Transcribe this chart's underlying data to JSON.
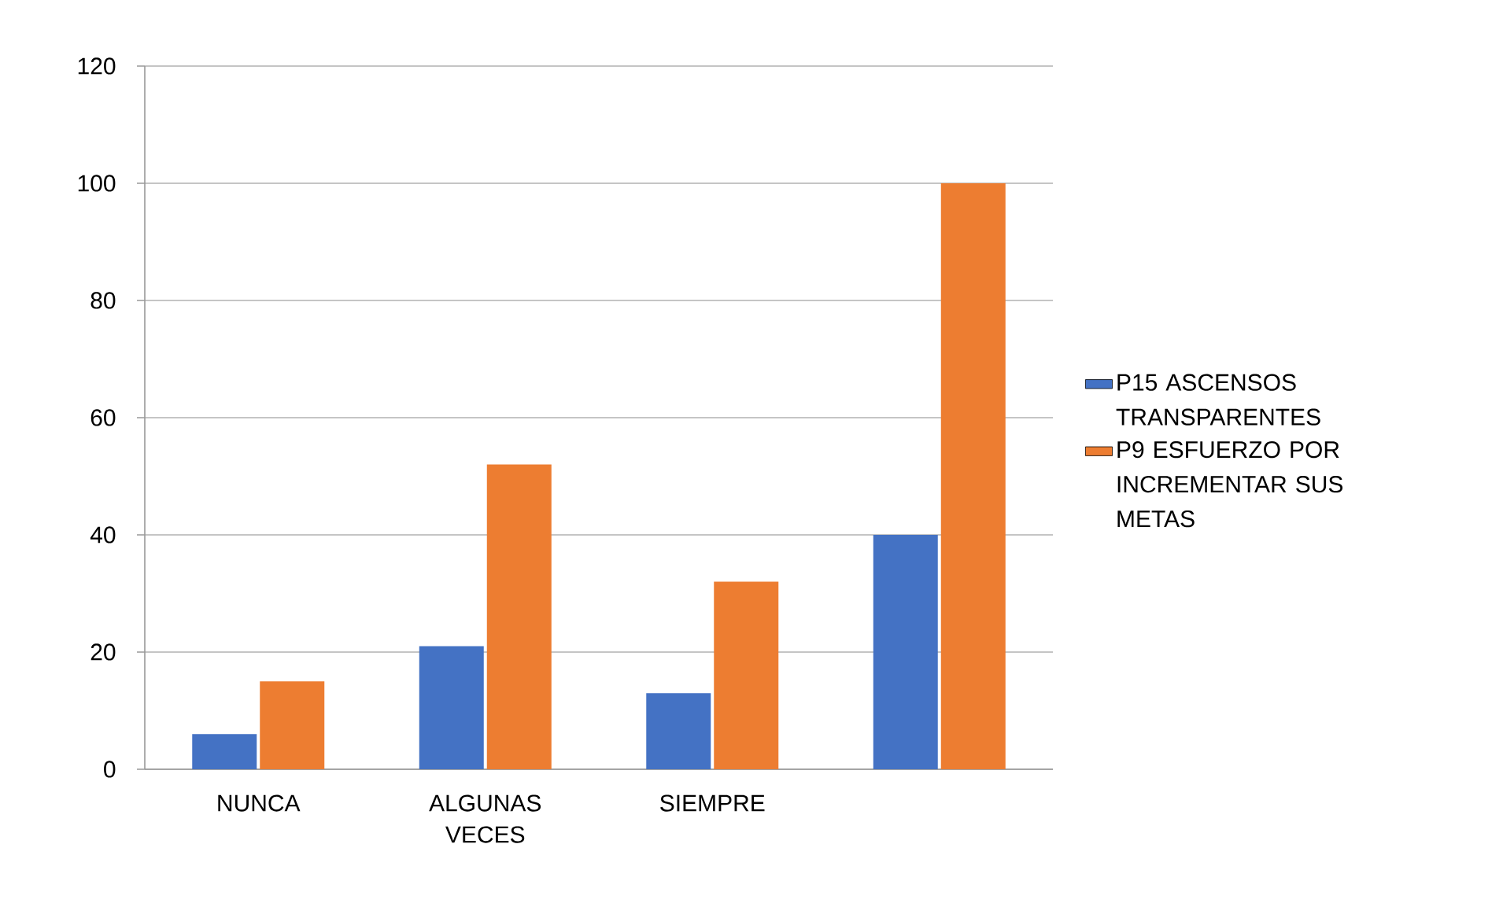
{
  "chart_data": {
    "type": "bar",
    "categories": [
      "NUNCA",
      "ALGUNAS VECES",
      "SIEMPRE",
      null
    ],
    "series": [
      {
        "name": "P15 ASCENSOS TRANSPARENTES",
        "color": "#4472c4",
        "values": [
          6,
          21,
          13,
          40
        ]
      },
      {
        "name": "P9 ESFUERZO POR INCREMENTAR SUS METAS",
        "color": "#ed7d31",
        "values": [
          15,
          52,
          32,
          100
        ]
      }
    ],
    "ylim": [
      0,
      120
    ],
    "yticks": [
      0,
      20,
      40,
      60,
      80,
      100,
      120
    ],
    "grid": "y",
    "legend": "right"
  }
}
